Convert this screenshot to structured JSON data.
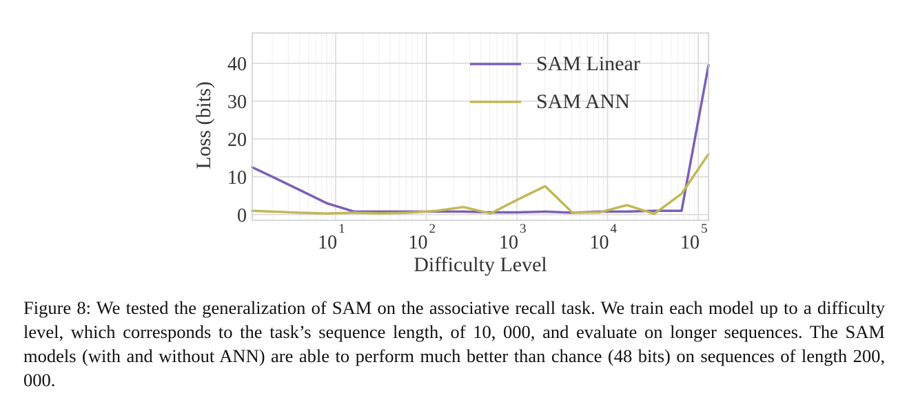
{
  "chart_data": {
    "type": "line",
    "title": "",
    "xlabel": "Difficulty Level",
    "ylabel": "Loss (bits)",
    "xscale": "log",
    "xlim": [
      1.2,
      130000
    ],
    "ylim": [
      -1.5,
      48
    ],
    "xticks": [
      {
        "value": 10,
        "base": "10",
        "exp": "1"
      },
      {
        "value": 100,
        "base": "10",
        "exp": "2"
      },
      {
        "value": 1000,
        "base": "10",
        "exp": "3"
      },
      {
        "value": 10000,
        "base": "10",
        "exp": "4"
      },
      {
        "value": 100000,
        "base": "10",
        "exp": "5"
      }
    ],
    "yticks": [
      0,
      10,
      20,
      30,
      40
    ],
    "grid": true,
    "legend_position": "top-right",
    "series": [
      {
        "name": "SAM Linear",
        "color": "#7b5fb8",
        "x": [
          1.2,
          2,
          4,
          8,
          16,
          32,
          64,
          128,
          256,
          512,
          1024,
          2048,
          4096,
          8192,
          16384,
          32768,
          65536,
          130000
        ],
        "y": [
          12.5,
          10,
          6.5,
          3,
          0.8,
          0.8,
          0.8,
          0.8,
          0.8,
          0.6,
          0.6,
          0.8,
          0.5,
          0.8,
          0.8,
          1,
          1,
          39.5
        ]
      },
      {
        "name": "SAM ANN",
        "color": "#c2b855",
        "x": [
          1.2,
          2,
          4,
          8,
          16,
          32,
          64,
          128,
          256,
          512,
          1024,
          2048,
          4096,
          8192,
          16384,
          32768,
          65536,
          130000
        ],
        "y": [
          1,
          0.8,
          0.5,
          0.3,
          0.5,
          0.3,
          0.5,
          1,
          2,
          0.3,
          4,
          7.5,
          0.5,
          0.6,
          2.5,
          0.2,
          5.5,
          16
        ]
      }
    ]
  },
  "caption": {
    "text": "Figure 8: We tested the generalization of SAM on the associative recall task. We train each model up to a difficulty level, which corresponds to the task’s sequence length, of 10, 000, and evaluate on longer sequences. The SAM models (with and without ANN) are able to perform much better than chance (48 bits) on sequences of length 200, 000."
  }
}
